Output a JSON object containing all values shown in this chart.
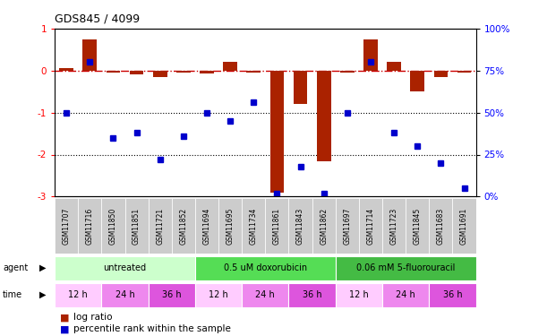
{
  "title": "GDS845 / 4099",
  "samples": [
    "GSM11707",
    "GSM11716",
    "GSM11850",
    "GSM11851",
    "GSM11721",
    "GSM11852",
    "GSM11694",
    "GSM11695",
    "GSM11734",
    "GSM11861",
    "GSM11843",
    "GSM11862",
    "GSM11697",
    "GSM11714",
    "GSM11723",
    "GSM11845",
    "GSM11683",
    "GSM11691"
  ],
  "log_ratio": [
    0.05,
    0.75,
    -0.05,
    -0.08,
    -0.15,
    -0.05,
    -0.07,
    0.2,
    -0.05,
    -2.9,
    -0.8,
    -2.15,
    -0.05,
    0.75,
    0.2,
    -0.5,
    -0.15,
    -0.05
  ],
  "percentile_rank": [
    50,
    80,
    35,
    38,
    22,
    36,
    50,
    45,
    56,
    2,
    18,
    2,
    50,
    80,
    38,
    30,
    20,
    5
  ],
  "ylim_left": [
    -3.0,
    1.0
  ],
  "ylim_right": [
    0,
    100
  ],
  "agent_groups": [
    {
      "label": "untreated",
      "start": 0,
      "end": 6,
      "color": "#ccffcc"
    },
    {
      "label": "0.5 uM doxorubicin",
      "start": 6,
      "end": 12,
      "color": "#55dd55"
    },
    {
      "label": "0.06 mM 5-fluorouracil",
      "start": 12,
      "end": 18,
      "color": "#44bb44"
    }
  ],
  "time_groups": [
    {
      "label": "12 h",
      "start": 0,
      "end": 2,
      "color": "#ffccff"
    },
    {
      "label": "24 h",
      "start": 2,
      "end": 4,
      "color": "#ee88ee"
    },
    {
      "label": "36 h",
      "start": 4,
      "end": 6,
      "color": "#dd55dd"
    },
    {
      "label": "12 h",
      "start": 6,
      "end": 8,
      "color": "#ffccff"
    },
    {
      "label": "24 h",
      "start": 8,
      "end": 10,
      "color": "#ee88ee"
    },
    {
      "label": "36 h",
      "start": 10,
      "end": 12,
      "color": "#dd55dd"
    },
    {
      "label": "12 h",
      "start": 12,
      "end": 14,
      "color": "#ffccff"
    },
    {
      "label": "24 h",
      "start": 14,
      "end": 16,
      "color": "#ee88ee"
    },
    {
      "label": "36 h",
      "start": 16,
      "end": 18,
      "color": "#dd55dd"
    }
  ],
  "bar_color": "#aa2200",
  "dot_color": "#0000cc",
  "dot_size": 5,
  "bar_width": 0.6,
  "hline_color_zero": "#cc0000",
  "hline_color_other": "#000000",
  "label_bg_color": "#cccccc",
  "label_border_color": "#ffffff"
}
